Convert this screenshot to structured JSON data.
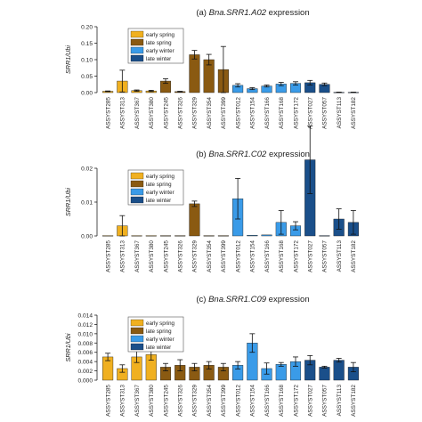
{
  "figure": {
    "panels": [
      {
        "panel_label": "(a)",
        "title_gene": "Bna.SRR1.A02",
        "title_suffix": " expression"
      },
      {
        "panel_label": "(b)",
        "title_gene": "Bna.SRR1.C02",
        "title_suffix": " expression"
      },
      {
        "panel_label": "(c)",
        "title_gene": "Bna.SRR1.C09",
        "title_suffix": " expression"
      }
    ],
    "ylabel": "SRR1/Ubi"
  },
  "colors": {
    "early spring": "#f0b020",
    "late spring": "#8a5a12",
    "early winter": "#3a9be8",
    "late winter": "#1a4f8a",
    "axis": "#222222"
  },
  "chart_data": [
    {
      "type": "bar",
      "title": "(a) Bna.SRR1.A02 expression",
      "ylabel": "SRR1/Ubi",
      "ylim": [
        0,
        0.2
      ],
      "yticks": [
        "0.00",
        "0.05",
        "0.10",
        "0.15",
        "0.20"
      ],
      "legend": [
        "early spring",
        "late spring",
        "early winter",
        "late winter"
      ],
      "legend_position": "top-left",
      "categories": [
        "ASSYST285",
        "ASSYST313",
        "ASSYST367",
        "ASSYST380",
        "ASSYST245",
        "ASSYST326",
        "ASSYST329",
        "ASSYST354",
        "ASSYST399",
        "ASSYST012",
        "ASSYST154",
        "ASSYST166",
        "ASSYST168",
        "ASSYST172",
        "ASSYST027",
        "ASSYST057",
        "ASSYST113",
        "ASSYST182"
      ],
      "groups": [
        "early spring",
        "early spring",
        "early spring",
        "early spring",
        "late spring",
        "late spring",
        "late spring",
        "late spring",
        "late spring",
        "early winter",
        "early winter",
        "early winter",
        "early winter",
        "early winter",
        "late winter",
        "late winter",
        "late winter",
        "late winter"
      ],
      "values": [
        0.004,
        0.035,
        0.006,
        0.005,
        0.035,
        0.003,
        0.115,
        0.1,
        0.07,
        0.022,
        0.012,
        0.02,
        0.026,
        0.028,
        0.03,
        0.025,
        0.001,
        0.001
      ],
      "errors": [
        0.001,
        0.033,
        0.002,
        0.002,
        0.007,
        0.001,
        0.013,
        0.016,
        0.07,
        0.005,
        0.003,
        0.003,
        0.005,
        0.005,
        0.007,
        0.004,
        0.0005,
        0.0005
      ]
    },
    {
      "type": "bar",
      "title": "(b) Bna.SRR1.C02 expression",
      "ylabel": "SRR1/Ubi",
      "ylim": [
        0,
        0.02
      ],
      "yticks": [
        "0.00",
        "0.01",
        "0.02"
      ],
      "legend": [
        "early spring",
        "late spring",
        "early winter",
        "late winter"
      ],
      "legend_position": "top-left",
      "categories": [
        "ASSYST285",
        "ASSYST313",
        "ASSYST367",
        "ASSYST380",
        "ASSYST245",
        "ASSYST326",
        "ASSYST329",
        "ASSYST354",
        "ASSYST399",
        "ASSYST012",
        "ASSYST154",
        "ASSYST166",
        "ASSYST168",
        "ASSYST172",
        "ASSYST027",
        "ASSYST057",
        "ASSYST113",
        "ASSYST182"
      ],
      "groups": [
        "early spring",
        "early spring",
        "early spring",
        "early spring",
        "late spring",
        "late spring",
        "late spring",
        "late spring",
        "late spring",
        "early winter",
        "early winter",
        "early winter",
        "early winter",
        "early winter",
        "late winter",
        "late winter",
        "late winter",
        "late winter"
      ],
      "values": [
        0.0001,
        0.003,
        0.0001,
        0.0001,
        0.0001,
        0.0001,
        0.0095,
        0.0001,
        0.0001,
        0.011,
        0.0002,
        0.0003,
        0.004,
        0.003,
        0.0225,
        0.0001,
        0.005,
        0.004
      ],
      "errors": [
        0,
        0.003,
        0,
        0,
        0,
        0,
        0.0008,
        0,
        0,
        0.006,
        0,
        0,
        0.0035,
        0.0012,
        0.01,
        0,
        0.003,
        0.0035
      ]
    },
    {
      "type": "bar",
      "title": "(c) Bna.SRR1.C09 expression",
      "ylabel": "SRR1/Ubi",
      "ylim": [
        0,
        0.014
      ],
      "yticks": [
        "0.000",
        "0.002",
        "0.004",
        "0.006",
        "0.008",
        "0.010",
        "0.012",
        "0.014"
      ],
      "legend": [
        "early spring",
        "late spring",
        "early winter",
        "late winter"
      ],
      "legend_position": "top-left",
      "categories": [
        "ASSYST285",
        "ASSYST313",
        "ASSYST367",
        "ASSYST380",
        "ASSYST245",
        "ASSYST326",
        "ASSYST329",
        "ASSYST354",
        "ASSYST399",
        "ASSYST012",
        "ASSYST154",
        "ASSYST166",
        "ASSYST168",
        "ASSYST172",
        "ASSYST027",
        "ASSYST057",
        "ASSYST113",
        "ASSYST182"
      ],
      "groups": [
        "early spring",
        "early spring",
        "early spring",
        "early spring",
        "late spring",
        "late spring",
        "late spring",
        "late spring",
        "late spring",
        "early winter",
        "early winter",
        "early winter",
        "early winter",
        "early winter",
        "late winter",
        "late winter",
        "late winter",
        "late winter"
      ],
      "values": [
        0.005,
        0.0025,
        0.005,
        0.0055,
        0.0028,
        0.0032,
        0.0028,
        0.0032,
        0.0028,
        0.0032,
        0.008,
        0.0025,
        0.0034,
        0.004,
        0.0043,
        0.0028,
        0.0043,
        0.0028
      ],
      "errors": [
        0.0008,
        0.0008,
        0.0012,
        0.0012,
        0.0008,
        0.0012,
        0.0008,
        0.0008,
        0.0008,
        0.0008,
        0.002,
        0.0012,
        0.0004,
        0.001,
        0.001,
        0.0002,
        0.0004,
        0.001
      ]
    }
  ]
}
